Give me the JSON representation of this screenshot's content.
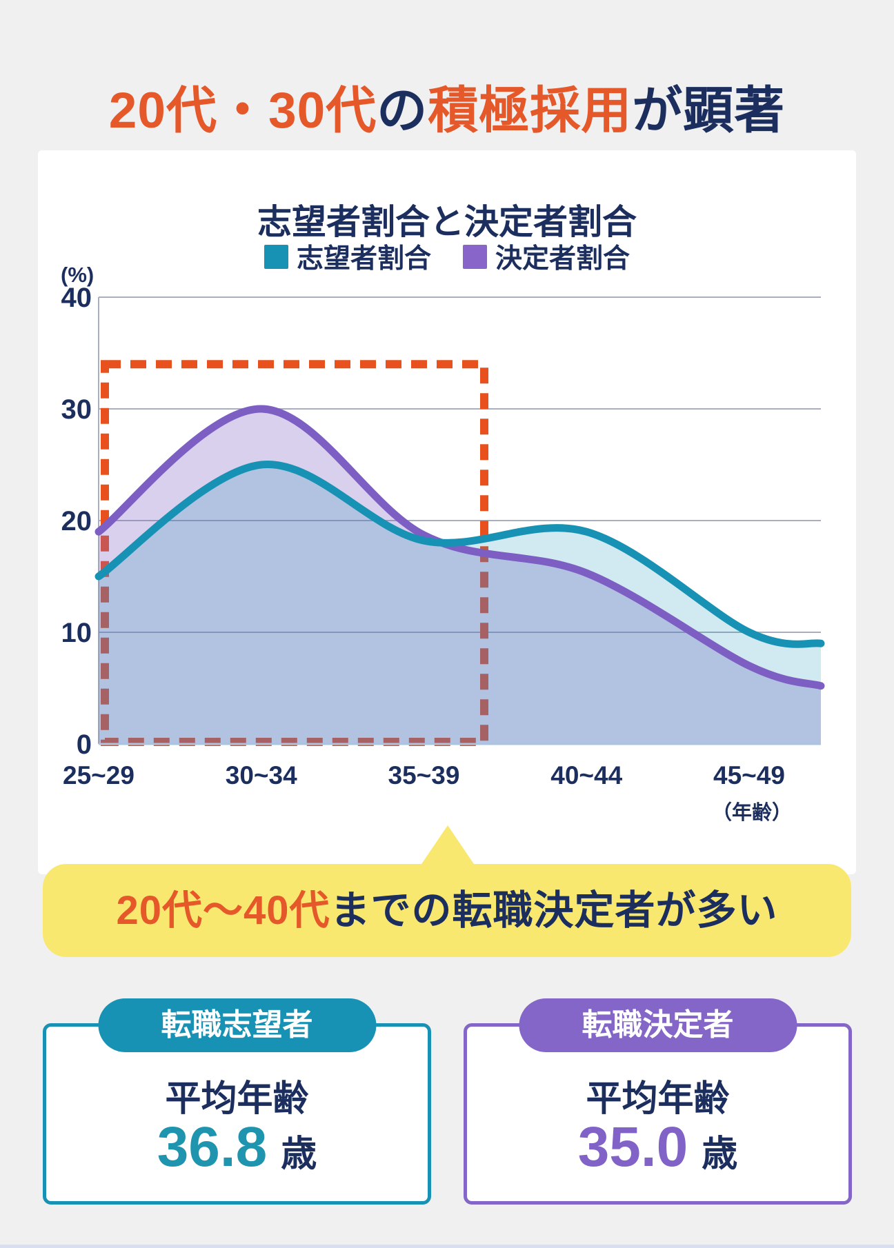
{
  "page_title": {
    "seg1": "20代・30代",
    "seg2": "の",
    "seg3": "積極採用",
    "seg4": "が顕著"
  },
  "colors": {
    "page_bg": "#f0f0f1",
    "navy_text": "#1b2e5e",
    "orange_text": "#e5582a",
    "teal_accent": "#1792b4",
    "purple_accent": "#8465c8",
    "highlight_dash": "#e8511d",
    "banner_yellow": "#f9e86f",
    "grid_gray": "#a8aebc",
    "footer_strip": "#d8dff0"
  },
  "chart": {
    "title": "志望者割合と決定者割合",
    "y_unit": "(%)",
    "x_unit": "（年齢）",
    "legend": [
      {
        "label": "志望者割合",
        "color": "#1792b4"
      },
      {
        "label": "決定者割合",
        "color": "#8765c9"
      }
    ]
  },
  "chart_data": {
    "type": "area",
    "title": "志望者割合と決定者割合",
    "categories": [
      "25~29",
      "30~34",
      "35~39",
      "40~44",
      "45~49"
    ],
    "xlabel": "（年齢）",
    "ylabel": "(%)",
    "ylim": [
      0,
      40
    ],
    "yticks": [
      40,
      30,
      20,
      10,
      0
    ],
    "grid": true,
    "legend_position": "top-center",
    "series": [
      {
        "name": "志望者割合",
        "color": "#1792b4",
        "fill": "rgba(23,146,180,0.20)",
        "values": [
          15,
          25,
          18.2,
          19,
          10
        ],
        "right_edge_value": 9
      },
      {
        "name": "決定者割合",
        "color": "#7d5ec3",
        "fill": "rgba(130,99,199,0.30)",
        "values": [
          19,
          30,
          18.7,
          15.3,
          7
        ],
        "right_edge_value": 5.2
      }
    ],
    "highlight_box": {
      "style": "dashed",
      "color": "#e8511d",
      "covers_categories": [
        "25~29",
        "30~34",
        "35~39"
      ],
      "top_value": 34
    }
  },
  "banner": {
    "seg_highlight": "20代〜40代",
    "seg_rest": "までの転職決定者が多い"
  },
  "stat_cards": [
    {
      "badge": "転職志望者",
      "label": "平均年齢",
      "value": "36.8",
      "unit": "歳",
      "accent": "#1792b4"
    },
    {
      "badge": "転職決定者",
      "label": "平均年齢",
      "value": "35.0",
      "unit": "歳",
      "accent": "#8465c8"
    }
  ]
}
